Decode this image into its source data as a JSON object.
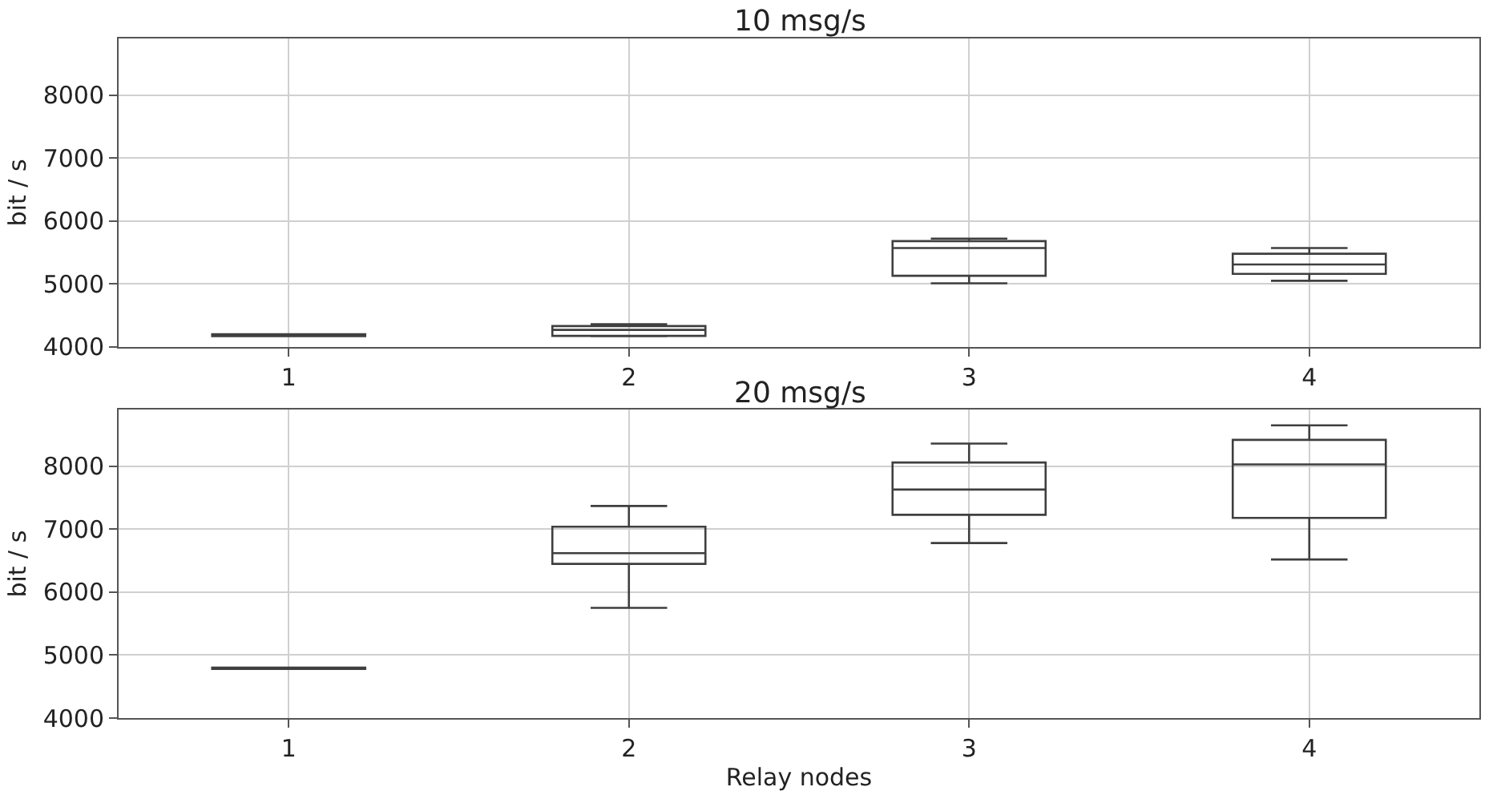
{
  "chart_data": [
    {
      "type": "box",
      "title": "10 msg/s",
      "ylabel": "bit / s",
      "categories": [
        "1",
        "2",
        "3",
        "4"
      ],
      "ylim": [
        4000,
        8900
      ],
      "yticks": [
        4000,
        5000,
        6000,
        7000,
        8000
      ],
      "grid": true,
      "series": [
        {
          "color": "#3f3f3f",
          "boxes": [
            {
              "low": 4170,
              "q1": 4170,
              "median": 4180,
              "q3": 4200,
              "high": 4200
            },
            {
              "low": 4170,
              "q1": 4175,
              "median": 4270,
              "q3": 4330,
              "high": 4360
            },
            {
              "low": 5010,
              "q1": 5130,
              "median": 5570,
              "q3": 5680,
              "high": 5720
            },
            {
              "low": 5050,
              "q1": 5160,
              "median": 5310,
              "q3": 5480,
              "high": 5570
            }
          ]
        }
      ]
    },
    {
      "type": "box",
      "title": "20 msg/s",
      "xlabel": "Relay nodes",
      "ylabel": "bit / s",
      "categories": [
        "1",
        "2",
        "3",
        "4"
      ],
      "ylim": [
        4000,
        8900
      ],
      "yticks": [
        4000,
        5000,
        6000,
        7000,
        8000
      ],
      "grid": true,
      "series": [
        {
          "color": "#3f3f3f",
          "boxes": [
            {
              "low": 4780,
              "q1": 4780,
              "median": 4790,
              "q3": 4800,
              "high": 4800
            },
            {
              "low": 5750,
              "q1": 6450,
              "median": 6620,
              "q3": 7040,
              "high": 7370
            },
            {
              "low": 6780,
              "q1": 7230,
              "median": 7630,
              "q3": 8060,
              "high": 8360
            },
            {
              "low": 6520,
              "q1": 7180,
              "median": 8030,
              "q3": 8420,
              "high": 8650
            }
          ]
        }
      ]
    }
  ]
}
